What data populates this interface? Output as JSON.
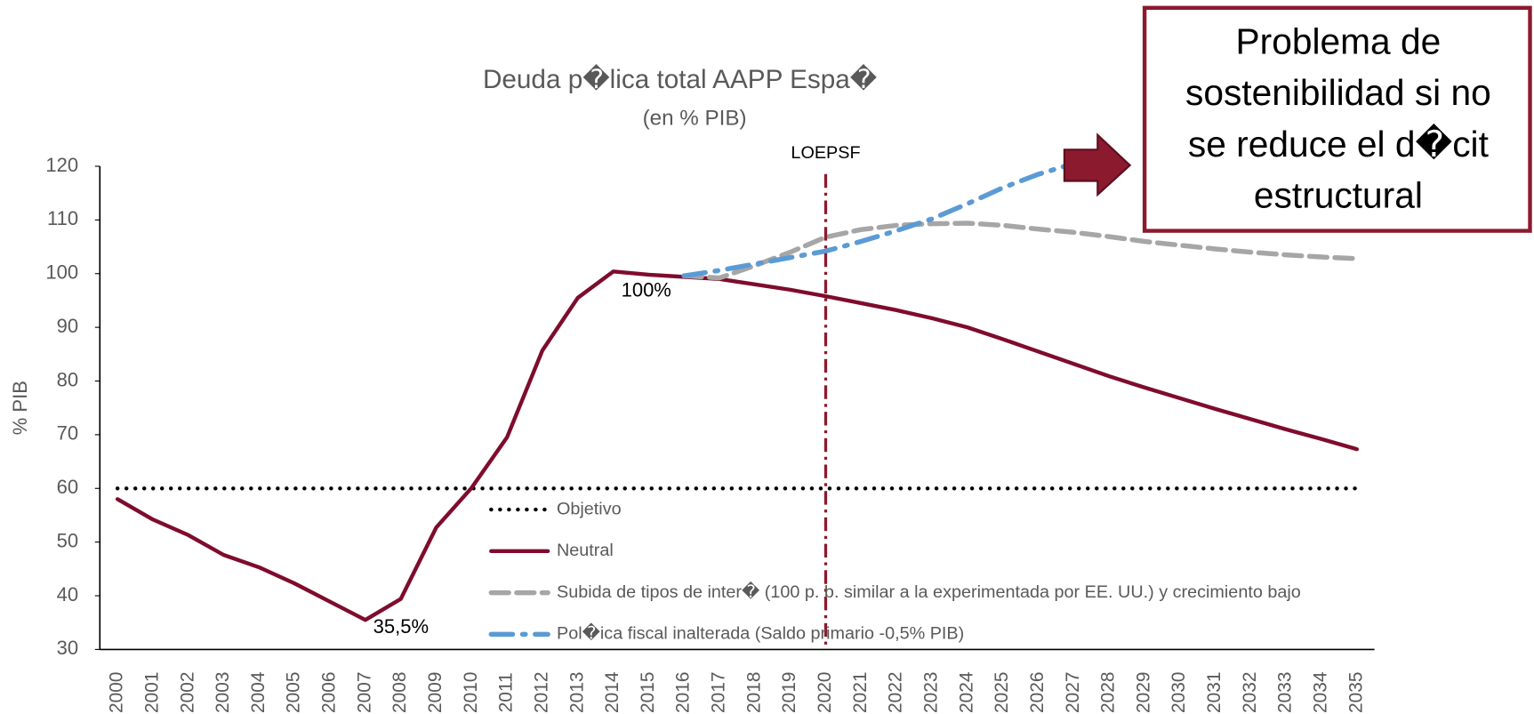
{
  "chart_data": {
    "type": "line",
    "title": "Deuda p�lica total AAPP Espa�",
    "subtitle": "(en % PIB)",
    "y_label": "% PIB",
    "categories": [
      "2000",
      "2001",
      "2002",
      "2003",
      "2004",
      "2005",
      "2006",
      "2007",
      "2008",
      "2009",
      "2010",
      "2011",
      "2012",
      "2013",
      "2014",
      "2015",
      "2016",
      "2017",
      "2018",
      "2019",
      "2020",
      "2021",
      "2022",
      "2023",
      "2024",
      "2025",
      "2026",
      "2027",
      "2028",
      "2029",
      "2030",
      "2031",
      "2032",
      "2033",
      "2034",
      "2035"
    ],
    "series": [
      {
        "name": "Objetivo",
        "color": "#000000",
        "dash": "dotted",
        "values": [
          60,
          60,
          60,
          60,
          60,
          60,
          60,
          60,
          60,
          60,
          60,
          60,
          60,
          60,
          60,
          60,
          60,
          60,
          60,
          60,
          60,
          60,
          60,
          60,
          60,
          60,
          60,
          60,
          60,
          60,
          60,
          60,
          60,
          60,
          60,
          60
        ]
      },
      {
        "name": "Neutral",
        "color": "#7f0c2c",
        "dash": "solid",
        "values": [
          58,
          54.2,
          51.3,
          47.6,
          45.3,
          42.3,
          38.9,
          35.5,
          39.4,
          52.7,
          60.1,
          69.5,
          85.7,
          95.5,
          100.4,
          99.8,
          99.4,
          99,
          98,
          97,
          95.8,
          94.5,
          93.2,
          91.7,
          90,
          87.8,
          85.5,
          83.2,
          80.9,
          78.8,
          76.8,
          74.8,
          72.9,
          71,
          69.2,
          67.3
        ]
      },
      {
        "name": "Subida de tipos de inter� (100 p. b. similar a la experimentada por EE. UU.)  y crecimiento bajo",
        "color": "#a6a6a6",
        "dash": "dashed",
        "values": [
          null,
          null,
          null,
          null,
          null,
          null,
          null,
          null,
          null,
          null,
          null,
          null,
          null,
          null,
          null,
          null,
          99.6,
          99.2,
          101.5,
          104,
          106.8,
          108.2,
          109,
          109.3,
          109.4,
          109,
          108.3,
          107.7,
          106.9,
          106,
          105.3,
          104.6,
          104,
          103.5,
          103.1,
          102.8
        ]
      },
      {
        "name": "Pol�ica fiscal inalterada (Saldo primario -0,5% PIB)",
        "color": "#5b9bd5",
        "dash": "dashdot",
        "values": [
          null,
          null,
          null,
          null,
          null,
          null,
          null,
          null,
          null,
          null,
          null,
          null,
          null,
          null,
          null,
          null,
          99.6,
          100.6,
          101.8,
          103,
          104.2,
          106,
          108,
          110.2,
          113,
          116,
          118.5,
          120.5,
          null,
          null,
          null,
          null,
          null,
          null,
          null,
          null
        ]
      }
    ],
    "ylim": [
      30,
      120
    ],
    "yticks": [
      30,
      40,
      50,
      60,
      70,
      80,
      90,
      100,
      110,
      120
    ],
    "annotations": [
      {
        "text": "100%",
        "category": "2015",
        "value": 100
      },
      {
        "text": "35,5%",
        "category": "2007",
        "value": 35.5
      }
    ],
    "vline": {
      "text": "LOEPSF",
      "category": "2020"
    },
    "callout": [
      "Problema de",
      "sostenibilidad si no",
      "se reduce el d�cit",
      "estructural"
    ]
  }
}
